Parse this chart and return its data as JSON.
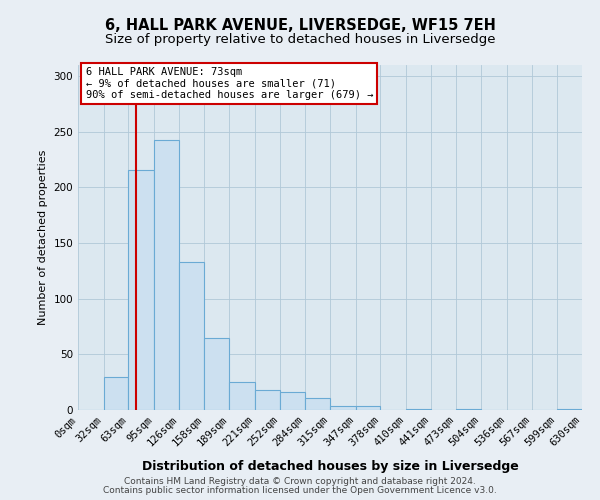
{
  "title1": "6, HALL PARK AVENUE, LIVERSEDGE, WF15 7EH",
  "title2": "Size of property relative to detached houses in Liversedge",
  "xlabel": "Distribution of detached houses by size in Liversedge",
  "ylabel": "Number of detached properties",
  "bin_edges": [
    0,
    32,
    63,
    95,
    126,
    158,
    189,
    221,
    252,
    284,
    315,
    347,
    378,
    410,
    441,
    473,
    504,
    536,
    567,
    599,
    630
  ],
  "bar_heights": [
    0,
    30,
    216,
    243,
    133,
    65,
    25,
    18,
    16,
    11,
    4,
    4,
    0,
    1,
    0,
    1,
    0,
    0,
    0,
    1
  ],
  "bar_color": "#cce0f0",
  "bar_edgecolor": "#6aaad4",
  "red_line_x": 73,
  "annotation_title": "6 HALL PARK AVENUE: 73sqm",
  "annotation_line1": "← 9% of detached houses are smaller (71)",
  "annotation_line2": "90% of semi-detached houses are larger (679) →",
  "annotation_box_color": "#ffffff",
  "annotation_box_edgecolor": "#cc0000",
  "red_line_color": "#cc0000",
  "ylim": [
    0,
    310
  ],
  "yticks": [
    0,
    50,
    100,
    150,
    200,
    250,
    300
  ],
  "footer1": "Contains HM Land Registry data © Crown copyright and database right 2024.",
  "footer2": "Contains public sector information licensed under the Open Government Licence v3.0.",
  "background_color": "#e8eef4",
  "plot_background_color": "#dce8f0",
  "grid_color": "#b0c8d8",
  "title1_fontsize": 10.5,
  "title2_fontsize": 9.5,
  "xlabel_fontsize": 9,
  "ylabel_fontsize": 8,
  "tick_fontsize": 7.5,
  "annotation_fontsize": 7.5,
  "footer_fontsize": 6.5
}
